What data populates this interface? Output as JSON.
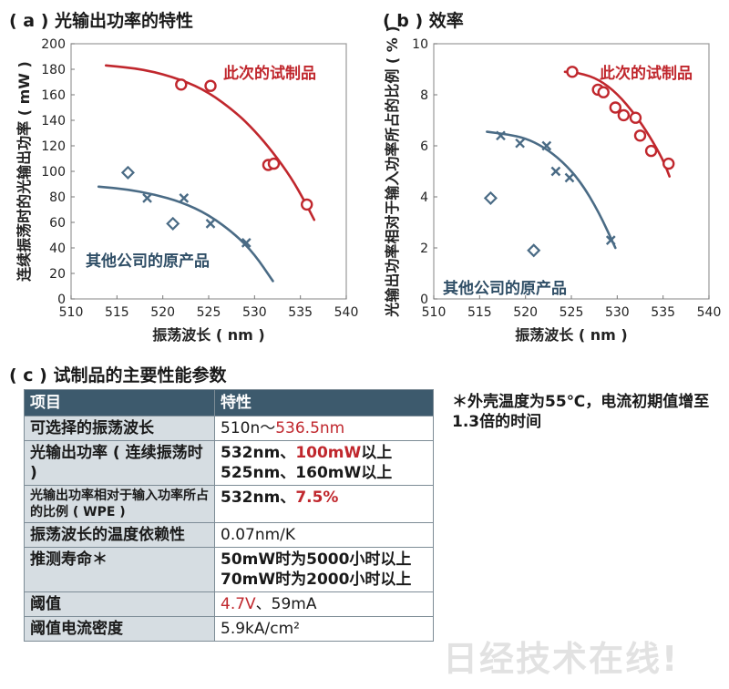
{
  "panel_a_title": "( a ) 光输出功率的特性",
  "panel_b_title": "( b ) 效率",
  "panel_c_title": "( c ) 试制品的主要性能参数",
  "chart_data": [
    {
      "type": "scatter",
      "title": "( a ) 光输出功率的特性",
      "xlabel": "振荡波长 ( nm )",
      "ylabel": "连续振荡时的光输出功率 ( mW )",
      "xlim": [
        510,
        540
      ],
      "ylim": [
        0,
        200
      ],
      "xticks": [
        510,
        515,
        520,
        525,
        530,
        535,
        540
      ],
      "yticks": [
        0,
        20,
        40,
        60,
        80,
        100,
        120,
        140,
        160,
        180,
        200
      ],
      "grid": false,
      "series": [
        {
          "name": "此次的试制品",
          "color": "#c0272d",
          "marker": "circle",
          "x": [
            522,
            525.2,
            531.5,
            532.1,
            535.7
          ],
          "y": [
            168,
            167,
            105,
            106,
            74
          ],
          "trend_x": [
            513.8,
            518,
            522,
            525,
            528,
            530,
            532,
            534,
            535.5,
            536.5
          ],
          "trend_y": [
            183,
            180,
            172,
            162,
            146,
            132,
            115,
            95,
            76,
            62
          ]
        },
        {
          "name": "其他公司的原产品",
          "color": "#4a6b85",
          "marker": "mixed",
          "x": [
            516.2,
            518.3,
            521.1,
            522.3,
            525.2,
            529.1
          ],
          "y": [
            99,
            79,
            59,
            79,
            59,
            44
          ],
          "markers": [
            "diamond",
            "x",
            "diamond",
            "x",
            "x",
            "x"
          ],
          "trend_x": [
            513,
            516,
            519,
            522,
            525,
            528,
            530,
            532
          ],
          "trend_y": [
            88,
            86,
            82,
            76,
            66,
            50,
            35,
            14
          ]
        }
      ]
    },
    {
      "type": "scatter",
      "title": "( b ) 效率",
      "xlabel": "振荡波长 ( nm )",
      "ylabel": "光输出功率相对于输入功率所占的比例 ( % )",
      "xlim": [
        510,
        540
      ],
      "ylim": [
        0,
        10
      ],
      "xticks": [
        510,
        515,
        520,
        525,
        530,
        535,
        540
      ],
      "yticks": [
        0,
        2,
        4,
        6,
        8,
        10
      ],
      "grid": false,
      "series": [
        {
          "name": "此次的试制品",
          "color": "#c0272d",
          "marker": "circle",
          "x": [
            525.1,
            527.9,
            528.5,
            529.8,
            530.7,
            532,
            532.5,
            533.7,
            535.6
          ],
          "y": [
            8.9,
            8.2,
            8.1,
            7.5,
            7.2,
            7.1,
            6.4,
            5.8,
            5.3
          ],
          "trend_x": [
            524.3,
            526,
            528,
            530,
            532,
            533.5,
            535,
            535.7
          ],
          "trend_y": [
            8.9,
            8.85,
            8.6,
            8.05,
            7.2,
            6.4,
            5.45,
            4.8
          ]
        },
        {
          "name": "其他公司的原产品",
          "color": "#4a6b85",
          "marker": "mixed",
          "x": [
            516.2,
            517.3,
            519.4,
            520.9,
            522.3,
            523.3,
            524.8,
            529.3
          ],
          "y": [
            3.95,
            6.4,
            6.1,
            1.9,
            6.0,
            5.0,
            4.75,
            2.3
          ],
          "markers": [
            "diamond",
            "x",
            "x",
            "diamond",
            "x",
            "x",
            "x",
            "x"
          ],
          "trend_x": [
            515.8,
            518,
            520,
            522,
            524,
            526,
            528,
            529.8
          ],
          "trend_y": [
            6.55,
            6.45,
            6.3,
            5.95,
            5.4,
            4.6,
            3.4,
            2.0
          ]
        }
      ]
    }
  ],
  "table": {
    "headers": [
      "项目",
      "特性"
    ],
    "rows": [
      {
        "item": "可选择的振荡波长",
        "value_plain": "510n～",
        "value_red": "536.5nm",
        "value_rest": ""
      },
      {
        "item": "光输出功率 ( 连续振荡时 )",
        "value_plain": "532nm、",
        "value_red": "100mW",
        "value_rest": "以上",
        "value_line2": "525nm、160mW以上"
      },
      {
        "item": "光输出功率相对于输入功率所占的比例 ( WPE )",
        "value_plain": "532nm、",
        "value_red": "7.5%",
        "value_rest": ""
      },
      {
        "item": "振荡波长的温度依赖性",
        "value_plain": "0.07nm/K"
      },
      {
        "item": "推测寿命＊",
        "value_plain": "50mW时为5000小时以上",
        "value_line2": "70mW时为2000小时以上"
      },
      {
        "item": "阈值",
        "value_plain": "",
        "value_red": "4.7V",
        "value_rest": "、59mA"
      },
      {
        "item": "阈值电流密度",
        "value_plain": "5.9kA/cm²"
      }
    ]
  },
  "note": "＊外壳温度为55℃，电流初期值增至1.3倍的时间",
  "watermark": "日经技术在线!"
}
